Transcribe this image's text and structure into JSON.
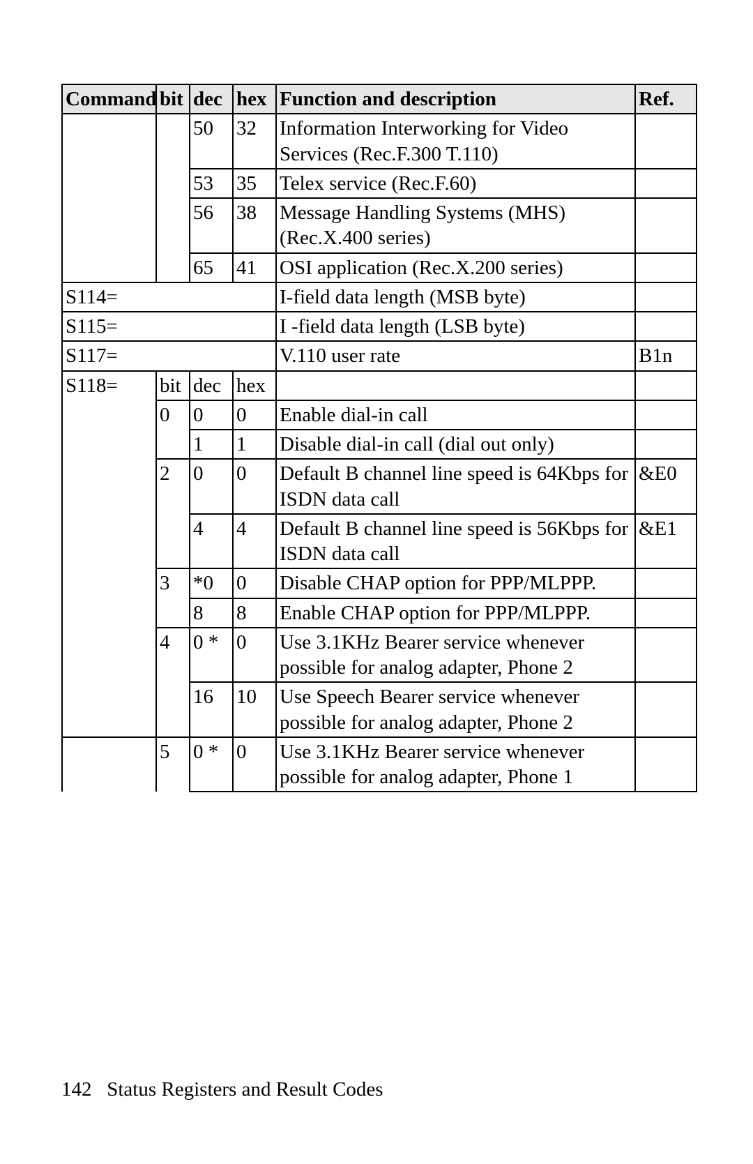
{
  "meta": {
    "title_fontsize": 29,
    "body_fontsize": 29,
    "font_family": "Times New Roman",
    "border_color": "#000000",
    "header_bg": "#e6e6e6",
    "page_bg": "#ffffff",
    "text_color": "#000000"
  },
  "columns": {
    "command": "Command",
    "bit": "bit",
    "dec": "dec",
    "hex": "hex",
    "func": "Function and description",
    "ref": "Ref."
  },
  "rows": [
    {
      "cmd": "",
      "bit": "",
      "dec": "50",
      "hex": "32",
      "func": "Information Interworking for Video Services (Rec.F.300 T.110)",
      "ref": "",
      "cmd_merge": "cont",
      "bit_merge": "cont"
    },
    {
      "cmd": "",
      "bit": "",
      "dec": "53",
      "hex": "35",
      "func": "Telex service (Rec.F.60)",
      "ref": "",
      "cmd_merge": "cont",
      "bit_merge": "cont"
    },
    {
      "cmd": "",
      "bit": "",
      "dec": "56",
      "hex": "38",
      "func": "Message Handling Systems (MHS) (Rec.X.400 series)",
      "ref": "",
      "cmd_merge": "cont",
      "bit_merge": "cont"
    },
    {
      "cmd": "",
      "bit": "",
      "dec": "65",
      "hex": "41",
      "func": "OSI application (Rec.X.200 series)",
      "ref": "",
      "cmd_merge": "end",
      "bit_merge": "end"
    },
    {
      "cmd": "S114=",
      "bit": "",
      "dec": "",
      "hex": "",
      "func": "I-field data length (MSB byte)",
      "ref": "",
      "span_bit_dec_hex": true
    },
    {
      "cmd": "S115=",
      "bit": "",
      "dec": "",
      "hex": "",
      "func": "I -field data length (LSB byte)",
      "ref": "",
      "span_bit_dec_hex": true
    },
    {
      "cmd": "S117=",
      "bit": "",
      "dec": "",
      "hex": "",
      "func": "V.110 user rate",
      "ref": "B1n",
      "span_bit_dec_hex": true
    },
    {
      "cmd": "S118=",
      "bit": "bit",
      "dec": "dec",
      "hex": "hex",
      "func": "",
      "ref": "",
      "cmd_merge": "start"
    },
    {
      "cmd": "",
      "bit": "0",
      "dec": "0",
      "hex": "0",
      "func": "Enable dial-in call",
      "ref": "",
      "cmd_merge": "cont",
      "bit_merge": "start"
    },
    {
      "cmd": "",
      "bit": "",
      "dec": "1",
      "hex": "1",
      "func": "Disable dial-in call (dial out only)",
      "ref": "",
      "cmd_merge": "cont",
      "bit_merge": "end"
    },
    {
      "cmd": "",
      "bit": "2",
      "dec": "0",
      "hex": "0",
      "func": "Default B channel line speed is 64Kbps for ISDN data call",
      "ref": "&E0",
      "cmd_merge": "cont",
      "bit_merge": "start"
    },
    {
      "cmd": "",
      "bit": "",
      "dec": "4",
      "hex": "4",
      "func": "Default B channel line speed is 56Kbps for ISDN data call",
      "ref": "&E1",
      "cmd_merge": "cont",
      "bit_merge": "end"
    },
    {
      "cmd": "",
      "bit": "3",
      "dec": "*0",
      "hex": "0",
      "func": "Disable CHAP option for PPP/MLPPP.",
      "ref": "",
      "cmd_merge": "cont",
      "bit_merge": "start"
    },
    {
      "cmd": "",
      "bit": "",
      "dec": "8",
      "hex": "8",
      "func": "Enable CHAP option for PPP/MLPPP.",
      "ref": "",
      "cmd_merge": "cont",
      "bit_merge": "end"
    },
    {
      "cmd": "",
      "bit": "4",
      "dec": "0  *",
      "hex": "0",
      "func": "Use 3.1KHz Bearer service whenever possible for analog adapter, Phone 2",
      "ref": "",
      "cmd_merge": "cont",
      "bit_merge": "start"
    },
    {
      "cmd": "",
      "bit": "",
      "dec": "16",
      "hex": "10",
      "func": "Use Speech Bearer service whenever possible for analog adapter, Phone 2",
      "ref": "",
      "cmd_merge": "cont",
      "bit_merge": "end"
    },
    {
      "cmd": "",
      "bit": "5",
      "dec": "0  *",
      "hex": "0",
      "func": "Use 3.1KHz Bearer service whenever possible for analog adapter, Phone 1",
      "ref": "",
      "cmd_merge": "open",
      "bit_merge": "open"
    }
  ],
  "footer": {
    "page_number": "142",
    "section_title": "Status Registers and Result Codes"
  }
}
